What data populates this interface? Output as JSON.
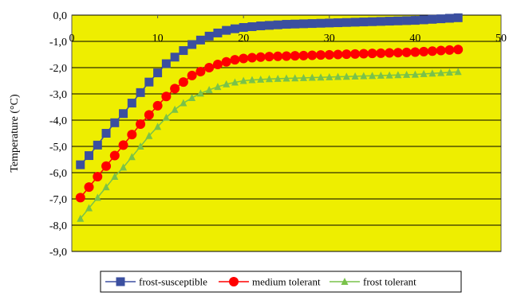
{
  "chart_data": {
    "type": "line",
    "title": "",
    "xlabel": "",
    "ylabel": "Temperature (°C)",
    "xlim": [
      0,
      50
    ],
    "ylim": [
      -9.0,
      0.0
    ],
    "x_ticks": [
      "0",
      "10",
      "20",
      "30",
      "40",
      "50"
    ],
    "y_ticks": [
      "0,0",
      "-1,0",
      "-2,0",
      "-3,0",
      "-4,0",
      "-5,0",
      "-6,0",
      "-7,0",
      "-8,0",
      "-9,0"
    ],
    "plot_background": "#eeee00",
    "grid": true,
    "legend_position": "bottom",
    "x": [
      1,
      2,
      3,
      4,
      5,
      6,
      7,
      8,
      9,
      10,
      11,
      12,
      13,
      14,
      15,
      16,
      17,
      18,
      19,
      20,
      21,
      22,
      23,
      24,
      25,
      26,
      27,
      28,
      29,
      30,
      31,
      32,
      33,
      34,
      35,
      36,
      37,
      38,
      39,
      40,
      41,
      42,
      43,
      44,
      45
    ],
    "series": [
      {
        "name": "frost-susceptible",
        "color": "#3b4fa0",
        "marker": "square",
        "values": [
          -5.7,
          -5.35,
          -4.95,
          -4.5,
          -4.1,
          -3.75,
          -3.35,
          -2.95,
          -2.55,
          -2.2,
          -1.85,
          -1.6,
          -1.35,
          -1.12,
          -0.95,
          -0.8,
          -0.68,
          -0.58,
          -0.52,
          -0.47,
          -0.44,
          -0.41,
          -0.39,
          -0.37,
          -0.35,
          -0.34,
          -0.33,
          -0.32,
          -0.31,
          -0.3,
          -0.29,
          -0.28,
          -0.27,
          -0.26,
          -0.25,
          -0.24,
          -0.23,
          -0.22,
          -0.21,
          -0.2,
          -0.18,
          -0.16,
          -0.14,
          -0.12,
          -0.1
        ]
      },
      {
        "name": "medium tolerant",
        "color": "#ff0000",
        "marker": "circle",
        "values": [
          -6.95,
          -6.55,
          -6.15,
          -5.75,
          -5.35,
          -4.95,
          -4.55,
          -4.15,
          -3.8,
          -3.45,
          -3.1,
          -2.8,
          -2.55,
          -2.3,
          -2.15,
          -2.0,
          -1.88,
          -1.78,
          -1.7,
          -1.65,
          -1.62,
          -1.6,
          -1.58,
          -1.57,
          -1.56,
          -1.55,
          -1.54,
          -1.53,
          -1.52,
          -1.51,
          -1.5,
          -1.49,
          -1.48,
          -1.47,
          -1.46,
          -1.45,
          -1.44,
          -1.43,
          -1.42,
          -1.41,
          -1.39,
          -1.37,
          -1.35,
          -1.33,
          -1.31
        ]
      },
      {
        "name": "frost tolerant",
        "color": "#79c24a",
        "marker": "triangle",
        "values": [
          -7.75,
          -7.35,
          -6.95,
          -6.55,
          -6.15,
          -5.8,
          -5.4,
          -5.0,
          -4.6,
          -4.25,
          -3.9,
          -3.6,
          -3.35,
          -3.15,
          -2.98,
          -2.85,
          -2.73,
          -2.63,
          -2.56,
          -2.5,
          -2.47,
          -2.45,
          -2.43,
          -2.42,
          -2.41,
          -2.4,
          -2.39,
          -2.38,
          -2.37,
          -2.36,
          -2.35,
          -2.34,
          -2.33,
          -2.32,
          -2.31,
          -2.3,
          -2.29,
          -2.28,
          -2.27,
          -2.26,
          -2.24,
          -2.22,
          -2.2,
          -2.18,
          -2.16
        ]
      }
    ]
  }
}
